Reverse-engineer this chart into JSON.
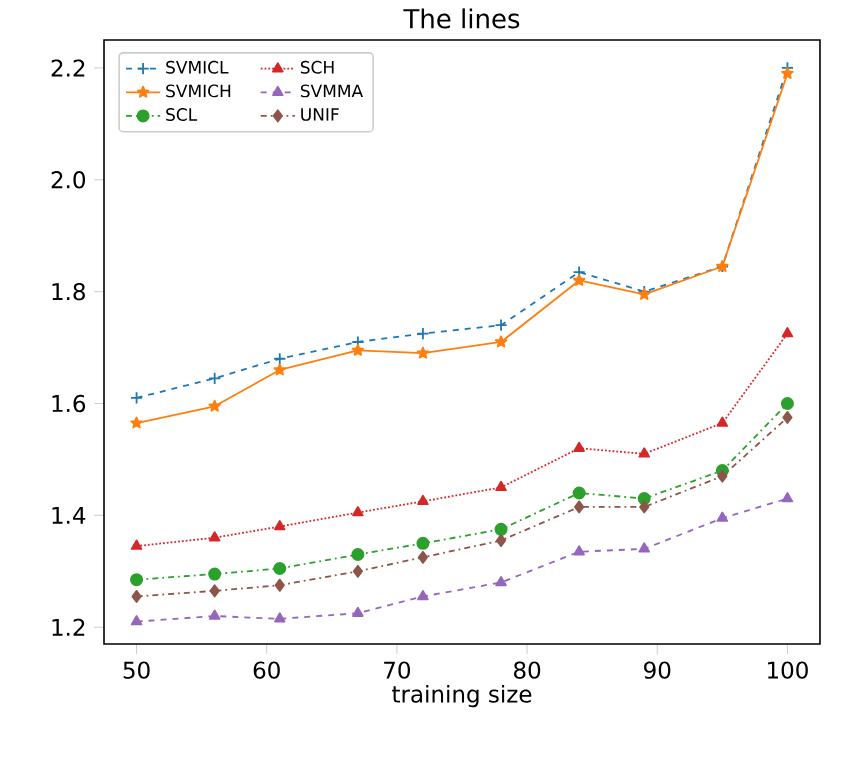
{
  "chart_data": {
    "type": "line",
    "title": "The lines",
    "xlabel": "training size",
    "x": [
      50,
      56,
      61,
      67,
      72,
      78,
      84,
      89,
      95,
      100
    ],
    "xlim": [
      47.5,
      102.5
    ],
    "xticks": [
      50,
      60,
      70,
      80,
      90,
      100
    ],
    "ylim": [
      1.17,
      2.25
    ],
    "yticks": [
      {
        "value": 1.2,
        "label": "1.2"
      },
      {
        "value": 1.4,
        "label": "1.4"
      },
      {
        "value": 1.6,
        "label": "1.6"
      },
      {
        "value": 1.8,
        "label": "1.8"
      },
      {
        "value": 2.0,
        "label": "2.0"
      },
      {
        "value": 2.2,
        "label": "2.2"
      }
    ],
    "legend": "top left",
    "grid": false,
    "series": [
      {
        "name": "SVMICL",
        "color": "#1f77b4",
        "marker": "cross",
        "line_style": "dashed",
        "values": [
          1.61,
          1.645,
          1.68,
          1.71,
          1.725,
          1.74,
          1.835,
          1.8,
          1.845,
          2.2
        ]
      },
      {
        "name": "SVMICH",
        "color": "#ff7f0e",
        "marker": "star",
        "line_style": "solid",
        "values": [
          1.565,
          1.595,
          1.66,
          1.695,
          1.69,
          1.71,
          1.82,
          1.795,
          1.845,
          2.19
        ]
      },
      {
        "name": "SCL",
        "color": "#2ca02c",
        "marker": "circle",
        "line_style": "dashdot",
        "values": [
          1.285,
          1.295,
          1.305,
          1.33,
          1.35,
          1.375,
          1.44,
          1.43,
          1.48,
          1.6
        ]
      },
      {
        "name": "SCH",
        "color": "#d62728",
        "marker": "triangle_down",
        "line_style": "dotted",
        "values": [
          1.345,
          1.36,
          1.38,
          1.405,
          1.425,
          1.45,
          1.52,
          1.51,
          1.565,
          1.725
        ]
      },
      {
        "name": "SVMMA",
        "color": "#9467bd",
        "marker": "triangle",
        "line_style": "dashed",
        "values": [
          1.21,
          1.22,
          1.215,
          1.225,
          1.255,
          1.28,
          1.335,
          1.34,
          1.395,
          1.43
        ]
      },
      {
        "name": "UNIF",
        "color": "#8c564b",
        "marker": "diamond",
        "line_style": "dashdot",
        "values": [
          1.255,
          1.265,
          1.275,
          1.3,
          1.325,
          1.355,
          1.415,
          1.415,
          1.47,
          1.575
        ]
      }
    ]
  }
}
